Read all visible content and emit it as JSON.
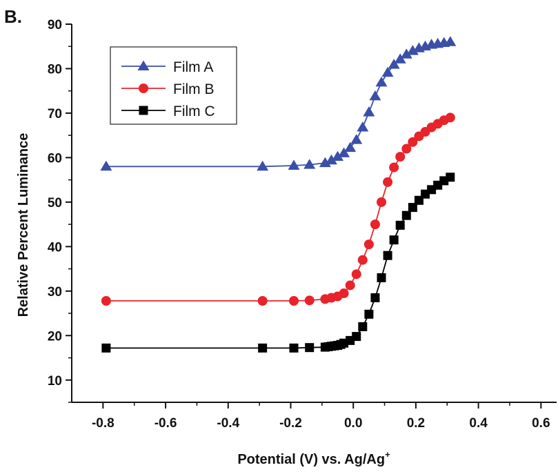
{
  "panel_label": "B.",
  "chart_data": {
    "type": "line",
    "xlabel": "Potential (V) vs. Ag/Ag",
    "xlabel_superscript": "+",
    "ylabel": "Relative Percent Luminance",
    "xlim": [
      -0.9,
      0.65
    ],
    "ylim": [
      5,
      90
    ],
    "x_ticks": [
      -0.8,
      -0.6,
      -0.4,
      -0.2,
      0.0,
      0.2,
      0.4,
      0.6
    ],
    "x_tick_labels": [
      "-0.8",
      "-0.6",
      "-0.4",
      "-0.2",
      "0.0",
      "0.2",
      "0.4",
      "0.6"
    ],
    "y_ticks": [
      10,
      20,
      30,
      40,
      50,
      60,
      70,
      80,
      90
    ],
    "y_tick_labels": [
      "10",
      "20",
      "30",
      "40",
      "50",
      "60",
      "70",
      "80",
      "90"
    ],
    "grid": false,
    "legend_position": "top-left",
    "series": [
      {
        "name": "Film A",
        "color": "#3a4fa8",
        "marker": "triangle",
        "x": [
          -0.79,
          -0.29,
          -0.19,
          -0.14,
          -0.09,
          -0.07,
          -0.05,
          -0.03,
          -0.01,
          0.01,
          0.03,
          0.05,
          0.07,
          0.09,
          0.11,
          0.13,
          0.15,
          0.17,
          0.19,
          0.21,
          0.23,
          0.25,
          0.27,
          0.29,
          0.31
        ],
        "y": [
          58,
          58,
          58.2,
          58.4,
          58.8,
          59.4,
          60.2,
          61.0,
          62.2,
          64.0,
          66.8,
          70.2,
          73.8,
          76.9,
          79.1,
          80.9,
          82.1,
          83.2,
          84.0,
          84.6,
          85.0,
          85.4,
          85.6,
          85.8,
          86.0
        ]
      },
      {
        "name": "Film B",
        "color": "#e8232a",
        "marker": "circle",
        "x": [
          -0.79,
          -0.29,
          -0.19,
          -0.14,
          -0.09,
          -0.07,
          -0.05,
          -0.03,
          -0.01,
          0.01,
          0.03,
          0.05,
          0.07,
          0.09,
          0.11,
          0.13,
          0.15,
          0.17,
          0.19,
          0.21,
          0.23,
          0.25,
          0.27,
          0.29,
          0.31
        ],
        "y": [
          27.8,
          27.8,
          27.8,
          27.9,
          28.2,
          28.5,
          28.8,
          29.5,
          31.3,
          33.8,
          37.0,
          40.5,
          45.0,
          50.0,
          54.5,
          57.8,
          60.2,
          62.0,
          63.5,
          64.8,
          65.8,
          66.8,
          67.6,
          68.4,
          69.0
        ]
      },
      {
        "name": "Film C",
        "color": "#000000",
        "marker": "square",
        "x": [
          -0.79,
          -0.29,
          -0.19,
          -0.14,
          -0.09,
          -0.08,
          -0.07,
          -0.06,
          -0.05,
          -0.04,
          -0.03,
          -0.01,
          0.01,
          0.03,
          0.05,
          0.07,
          0.09,
          0.11,
          0.13,
          0.15,
          0.17,
          0.19,
          0.21,
          0.23,
          0.25,
          0.27,
          0.29,
          0.31
        ],
        "y": [
          17.2,
          17.2,
          17.2,
          17.3,
          17.4,
          17.5,
          17.6,
          17.7,
          17.8,
          18.0,
          18.3,
          18.9,
          19.8,
          22.0,
          24.8,
          28.5,
          33.0,
          38.0,
          41.5,
          44.8,
          47.0,
          48.8,
          50.4,
          51.8,
          52.8,
          53.8,
          54.8,
          55.6
        ]
      }
    ]
  }
}
